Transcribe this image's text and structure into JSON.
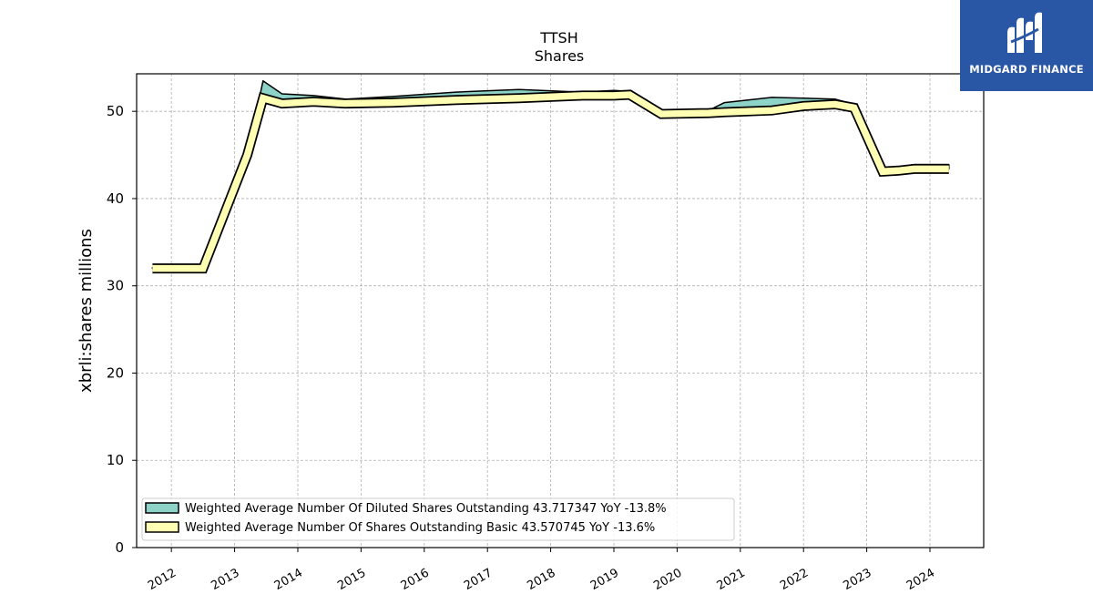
{
  "logo": {
    "text": "MIDGARD FINANCE"
  },
  "chart_data": {
    "type": "area",
    "title": "TTSH",
    "subtitle": "Shares",
    "ylabel": "xbrli:shares millions",
    "xlabel": "",
    "ylim": [
      0,
      54.3
    ],
    "xlim": [
      2011.45,
      2024.85
    ],
    "yticks": [
      0,
      10,
      20,
      30,
      40,
      50
    ],
    "xticks": [
      "2012",
      "2013",
      "2014",
      "2015",
      "2016",
      "2017",
      "2018",
      "2019",
      "2020",
      "2021",
      "2022",
      "2023",
      "2024"
    ],
    "grid": true,
    "legend_position": "lower-left",
    "colors": {
      "diluted": "#8dd3c7",
      "basic": "#ffffb3",
      "outline": "#000000"
    },
    "series": [
      {
        "name": "Weighted Average Number Of Diluted Shares Outstanding",
        "legend_label": "Weighted Average Number Of Diluted Shares Outstanding  43.717347 YoY -13.8%",
        "x": [
          2011.7,
          2012.0,
          2012.5,
          2013.2,
          2013.45,
          2013.75,
          2014.25,
          2014.75,
          2015.5,
          2016.5,
          2017.5,
          2018.5,
          2019.0,
          2019.25,
          2019.75,
          2020.5,
          2020.75,
          2021.5,
          2022.0,
          2022.5,
          2022.8,
          2023.25,
          2023.5,
          2023.75,
          2024.3
        ],
        "y": [
          32.1,
          32.1,
          32.1,
          45.0,
          53.5,
          52.0,
          51.8,
          51.4,
          51.7,
          52.2,
          52.5,
          52.2,
          52.4,
          52.3,
          50.0,
          50.1,
          51.0,
          51.6,
          51.5,
          51.4,
          50.8,
          43.6,
          43.6,
          43.9,
          43.9
        ]
      },
      {
        "name": "Weighted Average Number Of Shares Outstanding Basic",
        "legend_label": "Weighted Average Number Of Shares Outstanding Basic  43.570745 YoY -13.6%",
        "x": [
          2011.7,
          2012.0,
          2012.5,
          2013.2,
          2013.45,
          2013.75,
          2014.25,
          2014.75,
          2015.5,
          2016.5,
          2017.5,
          2018.5,
          2019.0,
          2019.25,
          2019.75,
          2020.5,
          2020.75,
          2021.5,
          2022.0,
          2022.5,
          2022.8,
          2023.25,
          2023.5,
          2023.75,
          2024.3
        ],
        "y": [
          32.0,
          32.0,
          32.0,
          45.0,
          51.5,
          50.9,
          51.1,
          50.9,
          51.0,
          51.3,
          51.5,
          51.8,
          51.8,
          51.9,
          49.7,
          49.8,
          49.9,
          50.1,
          50.6,
          50.8,
          50.4,
          43.1,
          43.2,
          43.4,
          43.4
        ]
      }
    ]
  }
}
